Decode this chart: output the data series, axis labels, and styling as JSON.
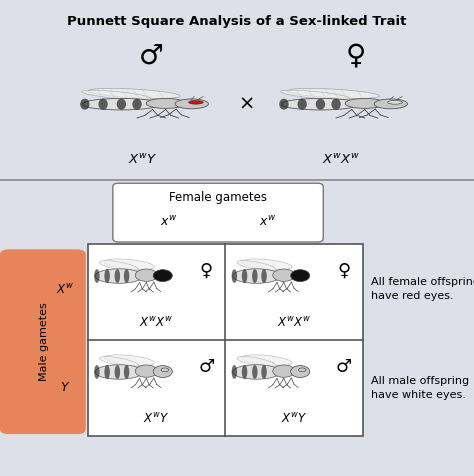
{
  "title": "Punnett Square Analysis of a Sex-linked Trait",
  "title_bg": "#b8bec9",
  "fig_bg": "#dde0e8",
  "top_section_bg": "#ffffff",
  "bottom_section_bg": "#e8eaee",
  "parent_male_label": "♂",
  "parent_female_label": "♀",
  "cross_symbol": "×",
  "female_gametes_label": "Female gametes",
  "male_gametes_label": "Male gametes",
  "cell_sex_symbols": [
    "♀",
    "♀",
    "♂",
    "♂"
  ],
  "female_note": "All female offspring\nhave red eyes.",
  "male_note": "All male offspring\nhave white eyes.",
  "male_gametes_bg": "#e8845a",
  "note_fontsize": 8.0,
  "genotype_fontsize": 8.5,
  "sex_symbol_fontsize": 13
}
